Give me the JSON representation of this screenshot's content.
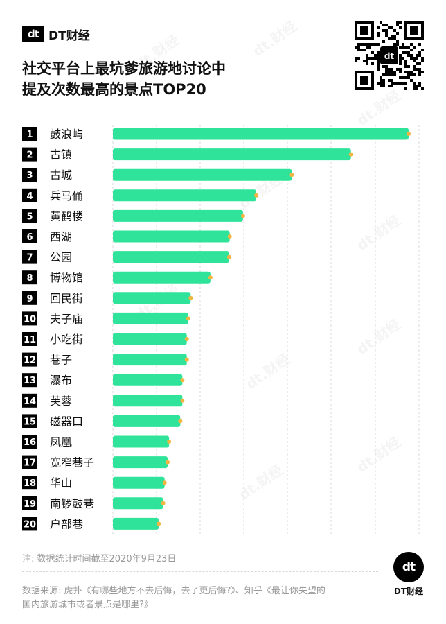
{
  "header": {
    "logo_mark": "dt",
    "logo_text": "DT财经",
    "title_line1": "社交平台上最坑爹旅游地讨论中",
    "title_line2": "提及次数最高的景点TOP20"
  },
  "qr": {
    "center_mark": "dt"
  },
  "colors": {
    "bar": "#2fe49a",
    "dot": "#f2b544",
    "rank_bg": "#000000",
    "grid": "#d9d9d9"
  },
  "chart_data": {
    "type": "bar",
    "orientation": "horizontal",
    "title": "社交平台上最坑爹旅游地讨论中提及次数最高的景点TOP20",
    "grid": "vertical-dashed",
    "value_unit": "relative",
    "categories": [
      "鼓浪屿",
      "古镇",
      "古城",
      "兵马俑",
      "黄鹤楼",
      "西湖",
      "公园",
      "博物馆",
      "回民街",
      "夫子庙",
      "小吃街",
      "巷子",
      "瀑布",
      "芙蓉",
      "磁器口",
      "凤凰",
      "宽窄巷子",
      "华山",
      "南锣鼓巷",
      "户部巷"
    ],
    "ranks": [
      "1",
      "2",
      "3",
      "4",
      "5",
      "6",
      "7",
      "8",
      "9",
      "10",
      "11",
      "12",
      "13",
      "14",
      "15",
      "16",
      "17",
      "18",
      "19",
      "20"
    ],
    "values": [
      100,
      80.5,
      60.5,
      48.5,
      44,
      39.5,
      39.3,
      33,
      26.3,
      25.5,
      25,
      25,
      23.5,
      23.5,
      22.8,
      19,
      18.5,
      17.5,
      17,
      15.5
    ]
  },
  "footer": {
    "note": "注: 数据统计时间截至2020年9月23日",
    "source_line1": "数据来源: 虎扑《有哪些地方不去后悔，去了更后悔?》、知乎《最让你失望的",
    "source_line2": "国内旅游城市或者景点是哪里?》",
    "brand_mark": "dt",
    "brand_label": "DT财经"
  },
  "watermark_text": "dt.财经"
}
